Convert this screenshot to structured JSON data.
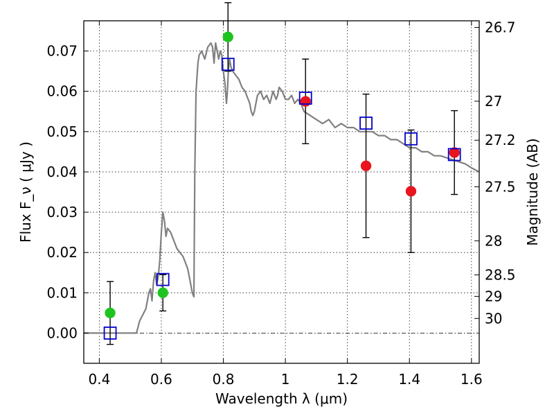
{
  "chart_data": {
    "type": "scatter",
    "xlabel": "Wavelength  λ (μm)",
    "ylabel": "Flux  F_ν  ( μJy )",
    "y2label": "Magnitude (AB)",
    "xlim": [
      0.35,
      1.625
    ],
    "ylim": [
      -0.0075,
      0.0775
    ],
    "grid": true,
    "x_ticks": [
      "0.4",
      "0.6",
      "0.8",
      "1",
      "1.2",
      "1.4",
      "1.6"
    ],
    "y_ticks": [
      "0.00",
      "0.01",
      "0.02",
      "0.03",
      "0.04",
      "0.05",
      "0.06",
      "0.07"
    ],
    "y2_ticks": [
      "26.7",
      "27",
      "27.2",
      "27.5",
      "28",
      "28.5",
      "29",
      "30"
    ],
    "colors": {
      "model": "#808080",
      "green": "#1ec41e",
      "red": "#e8141e",
      "square": "#0000cc",
      "zero_line": "#000000"
    },
    "series": [
      {
        "type": "line",
        "marker": "none",
        "x": [
          0.35,
          0.52,
          0.53,
          0.55,
          0.56,
          0.565,
          0.57,
          0.575,
          0.58,
          0.585,
          0.59,
          0.595,
          0.6,
          0.605,
          0.61,
          0.615,
          0.62,
          0.63,
          0.64,
          0.65,
          0.66,
          0.67,
          0.68,
          0.685,
          0.69,
          0.7,
          0.705,
          0.708,
          0.712,
          0.718,
          0.722,
          0.73,
          0.74,
          0.75,
          0.76,
          0.765,
          0.77,
          0.775,
          0.78,
          0.785,
          0.79,
          0.795,
          0.8,
          0.805,
          0.81,
          0.813,
          0.816,
          0.82,
          0.825,
          0.83,
          0.84,
          0.85,
          0.86,
          0.87,
          0.88,
          0.885,
          0.89,
          0.895,
          0.9,
          0.91,
          0.92,
          0.93,
          0.94,
          0.95,
          0.96,
          0.97,
          0.975,
          0.98,
          0.99,
          1.0,
          1.01,
          1.02,
          1.03,
          1.04,
          1.05,
          1.06,
          1.08,
          1.1,
          1.12,
          1.14,
          1.16,
          1.18,
          1.2,
          1.22,
          1.24,
          1.26,
          1.28,
          1.3,
          1.32,
          1.34,
          1.36,
          1.38,
          1.4,
          1.42,
          1.44,
          1.46,
          1.48,
          1.5,
          1.52,
          1.54,
          1.56,
          1.58,
          1.6,
          1.625
        ],
        "values": [
          0.0,
          0.0,
          0.003,
          0.006,
          0.01,
          0.011,
          0.008,
          0.013,
          0.015,
          0.012,
          0.014,
          0.018,
          0.025,
          0.03,
          0.028,
          0.024,
          0.026,
          0.025,
          0.023,
          0.021,
          0.02,
          0.019,
          0.017,
          0.016,
          0.014,
          0.01,
          0.009,
          0.04,
          0.06,
          0.067,
          0.069,
          0.07,
          0.068,
          0.071,
          0.072,
          0.071,
          0.067,
          0.072,
          0.07,
          0.068,
          0.07,
          0.069,
          0.065,
          0.062,
          0.057,
          0.06,
          0.065,
          0.068,
          0.066,
          0.065,
          0.064,
          0.063,
          0.061,
          0.06,
          0.058,
          0.057,
          0.055,
          0.054,
          0.055,
          0.059,
          0.06,
          0.058,
          0.059,
          0.057,
          0.06,
          0.058,
          0.059,
          0.061,
          0.06,
          0.058,
          0.058,
          0.059,
          0.057,
          0.058,
          0.057,
          0.055,
          0.054,
          0.053,
          0.052,
          0.053,
          0.051,
          0.052,
          0.051,
          0.051,
          0.05,
          0.05,
          0.05,
          0.049,
          0.049,
          0.048,
          0.048,
          0.047,
          0.046,
          0.046,
          0.045,
          0.045,
          0.044,
          0.044,
          0.0435,
          0.043,
          0.0425,
          0.042,
          0.041,
          0.04
        ]
      },
      {
        "type": "scatter",
        "marker": "circle",
        "x": [
          0.435,
          0.605,
          0.815
        ],
        "values": [
          0.005,
          0.01,
          0.0735
        ],
        "yerr": [
          0.0078,
          0.0045,
          0.0085
        ]
      },
      {
        "type": "scatter",
        "marker": "circle",
        "x": [
          1.065,
          1.26,
          1.405,
          1.545
        ],
        "values": [
          0.0575,
          0.0415,
          0.0352,
          0.0448
        ],
        "yerr": [
          0.0105,
          0.0178,
          0.0152,
          0.0104
        ]
      },
      {
        "type": "scatter",
        "marker": "open-square",
        "x": [
          0.435,
          0.605,
          0.815,
          1.065,
          1.26,
          1.405,
          1.545
        ],
        "values": [
          0.0,
          0.0133,
          0.0667,
          0.0583,
          0.0521,
          0.0482,
          0.0443
        ]
      }
    ]
  }
}
